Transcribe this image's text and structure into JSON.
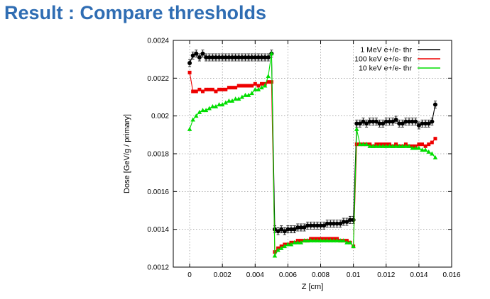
{
  "slide": {
    "title": "Result : Compare thresholds"
  },
  "chart_data": {
    "type": "line",
    "title": "",
    "xlabel": "Z [cm]",
    "ylabel": "Dose [GeV/g / primary]",
    "xlim": [
      -0.001,
      0.016
    ],
    "ylim": [
      0.0012,
      0.0024
    ],
    "x_ticks": [
      0,
      0.002,
      0.004,
      0.006,
      0.008,
      0.01,
      0.012,
      0.014,
      0.016
    ],
    "x_tick_labels": [
      "0",
      "0.002",
      "0.004",
      "0.006",
      "0.008",
      "0.01",
      "0.012",
      "0.014",
      "0.016"
    ],
    "y_ticks": [
      0.0012,
      0.0014,
      0.0016,
      0.0018,
      0.002,
      0.0022,
      0.0024
    ],
    "y_tick_labels": [
      "0.0012",
      "0.0014",
      "0.0016",
      "0.0018",
      "0.002",
      "0.0022",
      "0.0024"
    ],
    "grid": true,
    "legend_position": "top-right",
    "series": [
      {
        "name": "1 MeV e+/e- thr",
        "color": "#000000",
        "marker": "circle",
        "x": [
          0.0,
          0.0002,
          0.0004,
          0.0006,
          0.0008,
          0.001,
          0.0012,
          0.0014,
          0.0016,
          0.0018,
          0.002,
          0.0022,
          0.0024,
          0.0026,
          0.0028,
          0.003,
          0.0032,
          0.0034,
          0.0036,
          0.0038,
          0.004,
          0.0042,
          0.0044,
          0.0046,
          0.0048,
          0.005,
          0.0052,
          0.0054,
          0.0056,
          0.0058,
          0.006,
          0.0062,
          0.0064,
          0.0066,
          0.0068,
          0.007,
          0.0072,
          0.0074,
          0.0076,
          0.0078,
          0.008,
          0.0082,
          0.0084,
          0.0086,
          0.0088,
          0.009,
          0.0092,
          0.0094,
          0.0096,
          0.0098,
          0.01,
          0.0102,
          0.0104,
          0.0106,
          0.0108,
          0.011,
          0.0112,
          0.0114,
          0.0116,
          0.0118,
          0.012,
          0.0122,
          0.0124,
          0.0126,
          0.0128,
          0.013,
          0.0132,
          0.0134,
          0.0136,
          0.0138,
          0.014,
          0.0142,
          0.0144,
          0.0146,
          0.0148,
          0.015
        ],
        "y": [
          0.00228,
          0.00232,
          0.00233,
          0.00231,
          0.00233,
          0.00231,
          0.00231,
          0.00231,
          0.00231,
          0.00231,
          0.00231,
          0.00231,
          0.00231,
          0.00231,
          0.00231,
          0.00231,
          0.00231,
          0.00231,
          0.00231,
          0.00231,
          0.00231,
          0.00231,
          0.00231,
          0.00231,
          0.00231,
          0.00233,
          0.0014,
          0.00139,
          0.0014,
          0.00139,
          0.0014,
          0.0014,
          0.0014,
          0.00141,
          0.00141,
          0.00141,
          0.00142,
          0.00142,
          0.00142,
          0.00142,
          0.00142,
          0.00142,
          0.00143,
          0.00143,
          0.00143,
          0.00143,
          0.00143,
          0.00144,
          0.00144,
          0.00145,
          0.00145,
          0.00196,
          0.00196,
          0.00197,
          0.00196,
          0.00197,
          0.00197,
          0.00197,
          0.00196,
          0.00196,
          0.00197,
          0.00197,
          0.00197,
          0.00198,
          0.00196,
          0.00196,
          0.00197,
          0.00197,
          0.00197,
          0.00197,
          0.00195,
          0.00196,
          0.00196,
          0.00196,
          0.00197,
          0.00206
        ]
      },
      {
        "name": "100 keV e+/e- thr",
        "color": "#ee0000",
        "marker": "square",
        "x": [
          0.0,
          0.0002,
          0.0004,
          0.0006,
          0.0008,
          0.001,
          0.0012,
          0.0014,
          0.0016,
          0.0018,
          0.002,
          0.0022,
          0.0024,
          0.0026,
          0.0028,
          0.003,
          0.0032,
          0.0034,
          0.0036,
          0.0038,
          0.004,
          0.0042,
          0.0044,
          0.0046,
          0.0048,
          0.005,
          0.0052,
          0.0054,
          0.0056,
          0.0058,
          0.006,
          0.0062,
          0.0064,
          0.0066,
          0.0068,
          0.007,
          0.0072,
          0.0074,
          0.0076,
          0.0078,
          0.008,
          0.0082,
          0.0084,
          0.0086,
          0.0088,
          0.009,
          0.0092,
          0.0094,
          0.0096,
          0.0098,
          0.01,
          0.0102,
          0.0104,
          0.0106,
          0.0108,
          0.011,
          0.0112,
          0.0114,
          0.0116,
          0.0118,
          0.012,
          0.0122,
          0.0124,
          0.0126,
          0.0128,
          0.013,
          0.0132,
          0.0134,
          0.0136,
          0.0138,
          0.014,
          0.0142,
          0.0144,
          0.0146,
          0.0148,
          0.015
        ],
        "y": [
          0.00223,
          0.00213,
          0.00213,
          0.00214,
          0.00213,
          0.00214,
          0.00214,
          0.00214,
          0.00213,
          0.00214,
          0.00214,
          0.00214,
          0.00215,
          0.00215,
          0.00215,
          0.00216,
          0.00216,
          0.00216,
          0.00216,
          0.00216,
          0.00217,
          0.00216,
          0.00217,
          0.00217,
          0.00218,
          0.00218,
          0.00128,
          0.0013,
          0.00131,
          0.00132,
          0.00132,
          0.00133,
          0.00133,
          0.00134,
          0.00134,
          0.00134,
          0.00134,
          0.00135,
          0.00135,
          0.00135,
          0.00135,
          0.00135,
          0.00135,
          0.00135,
          0.00135,
          0.00135,
          0.00134,
          0.00134,
          0.00134,
          0.00133,
          0.00131,
          0.00185,
          0.00185,
          0.00185,
          0.00185,
          0.00185,
          0.00184,
          0.00185,
          0.00185,
          0.00185,
          0.00185,
          0.00185,
          0.00184,
          0.00185,
          0.00184,
          0.00184,
          0.00185,
          0.00184,
          0.00184,
          0.00184,
          0.00185,
          0.00185,
          0.00184,
          0.00185,
          0.00186,
          0.00188
        ]
      },
      {
        "name": "10 keV e+/e- thr",
        "color": "#00dd00",
        "marker": "triangle",
        "x": [
          0.0,
          0.0002,
          0.0004,
          0.0006,
          0.0008,
          0.001,
          0.0012,
          0.0014,
          0.0016,
          0.0018,
          0.002,
          0.0022,
          0.0024,
          0.0026,
          0.0028,
          0.003,
          0.0032,
          0.0034,
          0.0036,
          0.0038,
          0.004,
          0.0042,
          0.0044,
          0.0046,
          0.0048,
          0.005,
          0.0052,
          0.0054,
          0.0056,
          0.0058,
          0.006,
          0.0062,
          0.0064,
          0.0066,
          0.0068,
          0.007,
          0.0072,
          0.0074,
          0.0076,
          0.0078,
          0.008,
          0.0082,
          0.0084,
          0.0086,
          0.0088,
          0.009,
          0.0092,
          0.0094,
          0.0096,
          0.0098,
          0.01,
          0.0102,
          0.0104,
          0.0106,
          0.0108,
          0.011,
          0.0112,
          0.0114,
          0.0116,
          0.0118,
          0.012,
          0.0122,
          0.0124,
          0.0126,
          0.0128,
          0.013,
          0.0132,
          0.0134,
          0.0136,
          0.0138,
          0.014,
          0.0142,
          0.0144,
          0.0146,
          0.0148,
          0.015
        ],
        "y": [
          0.00193,
          0.00198,
          0.002,
          0.00202,
          0.00203,
          0.00203,
          0.00204,
          0.00205,
          0.00205,
          0.00206,
          0.00206,
          0.00207,
          0.00208,
          0.00208,
          0.00209,
          0.00209,
          0.0021,
          0.00211,
          0.00211,
          0.00212,
          0.00214,
          0.00214,
          0.00215,
          0.00216,
          0.00221,
          0.00233,
          0.00126,
          0.00129,
          0.0013,
          0.00131,
          0.00132,
          0.00132,
          0.00133,
          0.00133,
          0.00133,
          0.00134,
          0.00134,
          0.00134,
          0.00134,
          0.00134,
          0.00134,
          0.00134,
          0.00134,
          0.00134,
          0.00134,
          0.00134,
          0.00134,
          0.00134,
          0.00133,
          0.00133,
          0.00131,
          0.00193,
          0.00185,
          0.00185,
          0.00185,
          0.00184,
          0.00184,
          0.00184,
          0.00184,
          0.00184,
          0.00184,
          0.00184,
          0.00184,
          0.00184,
          0.00184,
          0.00184,
          0.00184,
          0.00184,
          0.00183,
          0.00183,
          0.00183,
          0.00182,
          0.00182,
          0.00181,
          0.0018,
          0.00178
        ]
      }
    ]
  }
}
